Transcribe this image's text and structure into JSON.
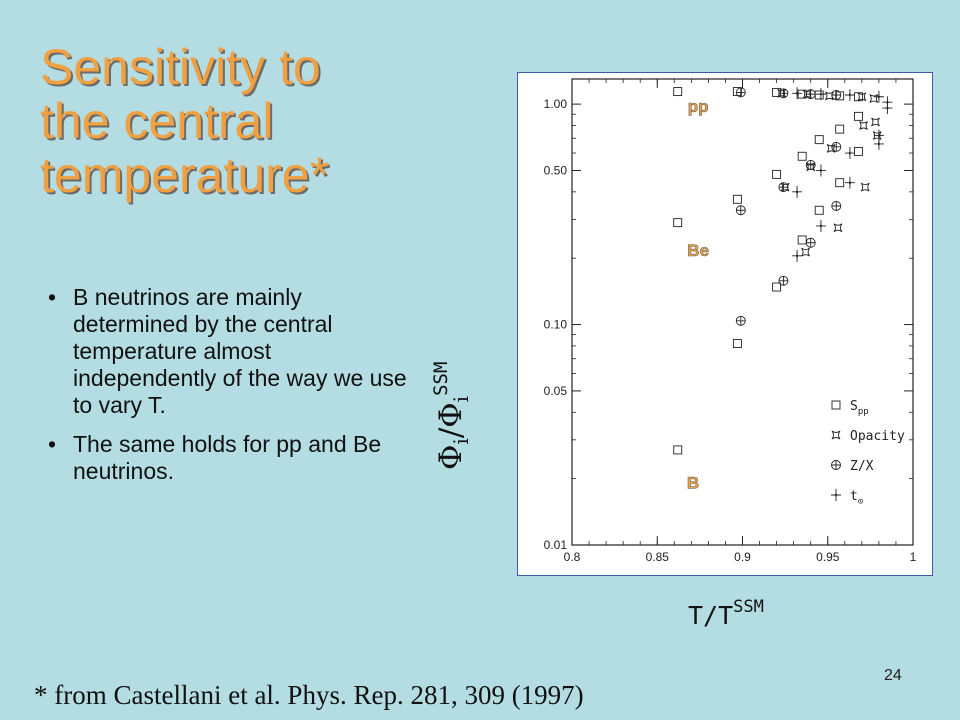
{
  "slide": {
    "title_lines": [
      "Sensitivity to",
      "the central",
      "temperature*"
    ],
    "bullets": [
      "B neutrinos are mainly determined by the central temperature almost independently of the way we use to vary T.",
      "The same holds for pp and Be neutrinos."
    ],
    "bullet_char": "•",
    "slide_number": "24",
    "citation": "* from Castellani et al. Phys. Rep. 281, 309 (1997)",
    "colors": {
      "background": "#b3dde3",
      "title": "#f0a040",
      "label_orange": "#f0a040",
      "frame_border": "#3a5ba8"
    }
  },
  "chart_data": {
    "type": "scatter",
    "xlabel_main": "T/T",
    "xlabel_sup": "SSM",
    "ylabel_main": "Φ",
    "ylabel_sub": "i",
    "ylabel_mid": "/Φ",
    "ylabel_sub2": "i",
    "ylabel_sup": "SSM",
    "xlim": [
      0.8,
      1.0
    ],
    "ylim": [
      0.01,
      1.3
    ],
    "yscale": "log",
    "xticks": [
      0.8,
      0.85,
      0.9,
      0.95,
      1.0
    ],
    "xtick_labels": [
      "0.8",
      "0.85",
      "0.9",
      "0.95",
      "1"
    ],
    "yticks": [
      0.01,
      0.05,
      0.1,
      0.5,
      1.0
    ],
    "ytick_labels": [
      "0.01",
      "0.05",
      "0.10",
      "0.50",
      "1.00"
    ],
    "legend_position": "bottom-right",
    "group_labels": [
      {
        "text": "pp",
        "x": 0.874,
        "y": 0.92
      },
      {
        "text": "Be",
        "x": 0.874,
        "y": 0.205
      },
      {
        "text": "B",
        "x": 0.871,
        "y": 0.018
      }
    ],
    "series": [
      {
        "name": "S",
        "name_sub": "pp",
        "marker": "square",
        "points": [
          {
            "x": 0.862,
            "y": 1.14
          },
          {
            "x": 0.897,
            "y": 1.14
          },
          {
            "x": 0.92,
            "y": 1.13
          },
          {
            "x": 0.935,
            "y": 1.11
          },
          {
            "x": 0.945,
            "y": 1.1
          },
          {
            "x": 0.957,
            "y": 1.09
          },
          {
            "x": 0.968,
            "y": 1.08
          },
          {
            "x": 0.862,
            "y": 0.29
          },
          {
            "x": 0.897,
            "y": 0.37
          },
          {
            "x": 0.92,
            "y": 0.48
          },
          {
            "x": 0.935,
            "y": 0.58
          },
          {
            "x": 0.945,
            "y": 0.69
          },
          {
            "x": 0.957,
            "y": 0.77
          },
          {
            "x": 0.968,
            "y": 0.88
          },
          {
            "x": 0.862,
            "y": 0.027
          },
          {
            "x": 0.897,
            "y": 0.082
          },
          {
            "x": 0.92,
            "y": 0.148
          },
          {
            "x": 0.935,
            "y": 0.242
          },
          {
            "x": 0.945,
            "y": 0.33
          },
          {
            "x": 0.957,
            "y": 0.44
          },
          {
            "x": 0.968,
            "y": 0.61
          }
        ]
      },
      {
        "name": "Opacity",
        "marker": "quad",
        "points": [
          {
            "x": 0.923,
            "y": 1.12
          },
          {
            "x": 0.938,
            "y": 1.11
          },
          {
            "x": 0.951,
            "y": 1.09
          },
          {
            "x": 0.97,
            "y": 1.08
          },
          {
            "x": 0.977,
            "y": 1.06
          },
          {
            "x": 0.925,
            "y": 0.42
          },
          {
            "x": 0.94,
            "y": 0.52
          },
          {
            "x": 0.952,
            "y": 0.63
          },
          {
            "x": 0.971,
            "y": 0.8
          },
          {
            "x": 0.978,
            "y": 0.83
          },
          {
            "x": 0.937,
            "y": 0.213
          },
          {
            "x": 0.956,
            "y": 0.275
          },
          {
            "x": 0.972,
            "y": 0.42
          },
          {
            "x": 0.979,
            "y": 0.72
          }
        ]
      },
      {
        "name": "Z/X",
        "marker": "circleplus",
        "points": [
          {
            "x": 0.899,
            "y": 1.13
          },
          {
            "x": 0.924,
            "y": 1.12
          },
          {
            "x": 0.94,
            "y": 1.11
          },
          {
            "x": 0.955,
            "y": 1.1
          },
          {
            "x": 0.899,
            "y": 0.33
          },
          {
            "x": 0.924,
            "y": 0.42
          },
          {
            "x": 0.94,
            "y": 0.53
          },
          {
            "x": 0.955,
            "y": 0.64
          },
          {
            "x": 0.899,
            "y": 0.104
          },
          {
            "x": 0.924,
            "y": 0.158
          },
          {
            "x": 0.94,
            "y": 0.235
          },
          {
            "x": 0.955,
            "y": 0.345
          }
        ]
      },
      {
        "name": "t",
        "name_sub": "⊙",
        "marker": "star",
        "points": [
          {
            "x": 0.932,
            "y": 1.12
          },
          {
            "x": 0.946,
            "y": 1.11
          },
          {
            "x": 0.963,
            "y": 1.1
          },
          {
            "x": 0.98,
            "y": 1.08
          },
          {
            "x": 0.985,
            "y": 1.02
          },
          {
            "x": 0.932,
            "y": 0.4
          },
          {
            "x": 0.946,
            "y": 0.5
          },
          {
            "x": 0.963,
            "y": 0.6
          },
          {
            "x": 0.98,
            "y": 0.72
          },
          {
            "x": 0.985,
            "y": 0.96
          },
          {
            "x": 0.932,
            "y": 0.205
          },
          {
            "x": 0.946,
            "y": 0.28
          },
          {
            "x": 0.963,
            "y": 0.44
          },
          {
            "x": 0.98,
            "y": 0.66
          }
        ]
      }
    ]
  }
}
